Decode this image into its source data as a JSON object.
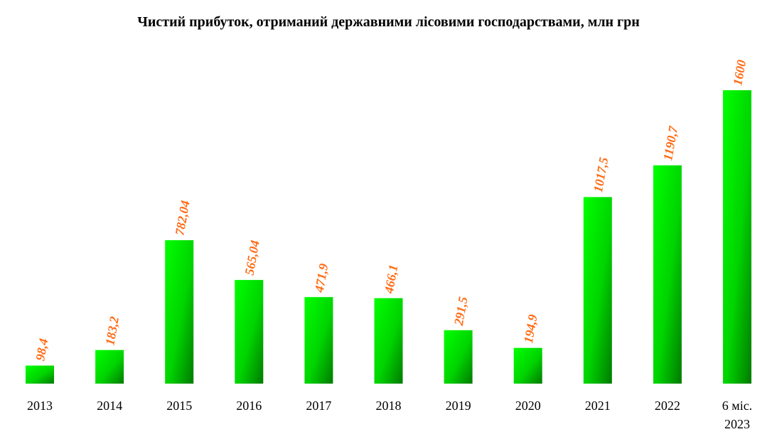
{
  "chart_data": {
    "type": "bar",
    "title": "Чистий прибуток, отриманий державними лісовими господарствами, млн грн",
    "xlabel": "",
    "ylabel": "",
    "ylim": [
      0,
      1600
    ],
    "grid": false,
    "legend": "none",
    "categories": [
      "2013",
      "2014",
      "2015",
      "2016",
      "2017",
      "2018",
      "2019",
      "2020",
      "2021",
      "2022",
      "6 міс. 2023"
    ],
    "category_lines": [
      [
        "2013"
      ],
      [
        "2014"
      ],
      [
        "2015"
      ],
      [
        "2016"
      ],
      [
        "2017"
      ],
      [
        "2018"
      ],
      [
        "2019"
      ],
      [
        "2020"
      ],
      [
        "2021"
      ],
      [
        "2022"
      ],
      [
        "6 міс.",
        "2023"
      ]
    ],
    "values": [
      98.4,
      183.2,
      782.04,
      565.04,
      471.9,
      466.1,
      291.5,
      194.9,
      1017.5,
      1190.7,
      1600
    ],
    "value_labels": [
      "98,4",
      "183,2",
      "782,04",
      "565,04",
      "471,9",
      "466,1",
      "291,5",
      "194,9",
      "1017,5",
      "1190,7",
      "1600"
    ],
    "colors": {
      "bar_light": "#00ff00",
      "bar_dark": "#007a00",
      "label": "#ff6a13"
    }
  }
}
